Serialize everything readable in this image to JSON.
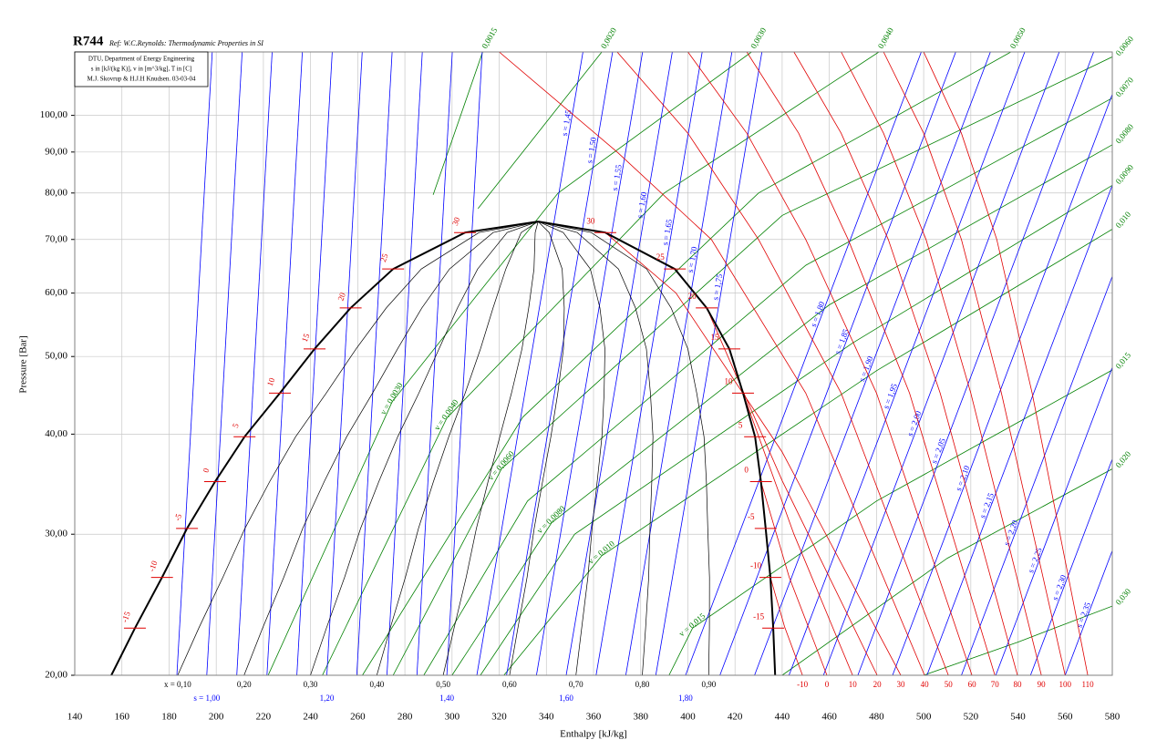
{
  "chart_data": {
    "type": "line",
    "title": "R744",
    "subtitle": "Ref: W.C.Reynolds: Thermodynamic Properties in SI",
    "info": [
      "DTU, Department of Energy Engineering",
      "s in [kJ/(kg K)], v in [m^3/kg], T in [C]",
      "M.J. Skovrup & H.J.H Knudsen. 03-03-04"
    ],
    "xlabel": "Enthalpy [kJ/kg]",
    "ylabel": "Pressure [Bar]",
    "xlim": [
      140,
      580
    ],
    "ylim": [
      20,
      120
    ],
    "ylog": true,
    "grid": true,
    "xticks": [
      140,
      160,
      180,
      200,
      220,
      240,
      260,
      280,
      300,
      320,
      340,
      360,
      380,
      400,
      420,
      440,
      460,
      480,
      500,
      520,
      540,
      560,
      580
    ],
    "yticks": [
      {
        "value": 20,
        "label": "20,00"
      },
      {
        "value": 30,
        "label": "30,00"
      },
      {
        "value": 40,
        "label": "40,00"
      },
      {
        "value": 50,
        "label": "50,00"
      },
      {
        "value": 60,
        "label": "60,00"
      },
      {
        "value": 70,
        "label": "70,00"
      },
      {
        "value": 80,
        "label": "80,00"
      },
      {
        "value": 90,
        "label": "90,00"
      },
      {
        "value": 100,
        "label": "100,00"
      }
    ],
    "dome": {
      "color": "#000000",
      "pressures": [
        20,
        22.9,
        26.5,
        30.5,
        34.9,
        39.7,
        45.0,
        51.1,
        57.5,
        64.3,
        71.4,
        73.7
      ],
      "h_liquid": [
        155.5,
        165.5,
        177,
        187.6,
        199.5,
        212,
        227,
        241.7,
        257,
        275,
        305.5,
        336.5
      ],
      "h_vapor": [
        437,
        436.2,
        435,
        433,
        431,
        428.5,
        423.4,
        417.6,
        408,
        394.5,
        365,
        336.5
      ],
      "temperatures": [
        null,
        "-15",
        "-10",
        "-5",
        "0",
        "5",
        "10",
        "15",
        "20",
        "25",
        "30",
        null
      ]
    },
    "quality": {
      "color": "#000000",
      "values": [
        0.1,
        0.2,
        0.3,
        0.4,
        0.5,
        0.6,
        0.7,
        0.8,
        0.9
      ],
      "labels": [
        "x = 0,10",
        "0,20",
        "0,30",
        "0,40",
        "0,50",
        "0,60",
        "0,70",
        "0,80",
        "0,90"
      ]
    },
    "isotherms": {
      "color": "#e00000",
      "series": [
        {
          "name": "-10",
          "x": [
            435,
            441,
            448.6
          ],
          "values": [
            26.5,
            23,
            20
          ]
        },
        {
          "name": "0",
          "x": [
            431,
            443,
            459
          ],
          "values": [
            34.9,
            26.5,
            20
          ]
        },
        {
          "name": "10",
          "x": [
            423.4,
            445,
            469.9
          ],
          "values": [
            45,
            30,
            20
          ]
        },
        {
          "name": "20",
          "x": [
            408,
            440,
            480.3
          ],
          "values": [
            57.5,
            35,
            20
          ]
        },
        {
          "name": "30",
          "x": [
            365,
            395,
            440,
            490.3
          ],
          "values": [
            71.4,
            60,
            38,
            20
          ]
        },
        {
          "name": "40",
          "x": [
            320,
            370,
            410,
            450,
            500.4
          ],
          "values": [
            120,
            90,
            70,
            45,
            20
          ]
        },
        {
          "name": "50",
          "x": [
            370,
            400,
            430,
            465,
            510.5
          ],
          "values": [
            120,
            95,
            70,
            45,
            20
          ]
        },
        {
          "name": "60",
          "x": [
            400,
            425,
            450,
            480,
            520.5
          ],
          "values": [
            120,
            95,
            70,
            45,
            20
          ]
        },
        {
          "name": "70",
          "x": [
            425,
            447,
            468,
            494,
            530.2
          ],
          "values": [
            120,
            95,
            70,
            45,
            20
          ]
        },
        {
          "name": "80",
          "x": [
            445,
            465,
            485,
            507,
            539.8
          ],
          "values": [
            120,
            95,
            70,
            45,
            20
          ]
        },
        {
          "name": "90",
          "x": [
            465,
            483,
            501,
            520,
            549.9
          ],
          "values": [
            120,
            95,
            70,
            45,
            20
          ]
        },
        {
          "name": "100",
          "x": [
            483,
            500,
            516,
            533,
            560
          ],
          "values": [
            120,
            95,
            70,
            45,
            20
          ]
        },
        {
          "name": "110",
          "x": [
            500,
            516,
            531,
            546,
            569.6
          ],
          "values": [
            120,
            95,
            70,
            45,
            20
          ]
        }
      ]
    },
    "isentropes": {
      "color": "#0000ff",
      "series": [
        {
          "x": [
            183.3,
            198.3
          ],
          "values": [
            20,
            120
          ]
        },
        {
          "x": [
            196,
            211
          ],
          "values": [
            20,
            120
          ]
        },
        {
          "x": [
            208.7,
            223.7
          ],
          "values": [
            20,
            120
          ]
        },
        {
          "x": [
            221.5,
            236.5
          ],
          "values": [
            20,
            120
          ]
        },
        {
          "x": [
            234.2,
            249.2
          ],
          "values": [
            20,
            120
          ]
        },
        {
          "x": [
            246.9,
            261.9
          ],
          "values": [
            20,
            120
          ]
        },
        {
          "x": [
            259.6,
            274.6
          ],
          "values": [
            20,
            120
          ]
        },
        {
          "x": [
            272.4,
            287.4
          ],
          "values": [
            20,
            120
          ]
        },
        {
          "x": [
            285.1,
            300.1
          ],
          "values": [
            20,
            120
          ]
        },
        {
          "x": [
            297.8,
            312.8
          ],
          "values": [
            20,
            120
          ]
        },
        {
          "name": "s = 1,45",
          "x": [
            310.5,
            355.5
          ],
          "values": [
            20,
            120
          ]
        },
        {
          "name": "s = 1,50",
          "x": [
            323.1,
            368.1
          ],
          "values": [
            20,
            120
          ]
        },
        {
          "name": "s = 1,55",
          "x": [
            335.8,
            380.8
          ],
          "values": [
            20,
            120
          ]
        },
        {
          "name": "s = 1,60",
          "x": [
            348.4,
            393.4
          ],
          "values": [
            20,
            120
          ]
        },
        {
          "name": "s = 1,65",
          "x": [
            361.1,
            406.1
          ],
          "values": [
            20,
            120
          ]
        },
        {
          "name": "s = 1,70",
          "x": [
            373.7,
            418.7
          ],
          "values": [
            20,
            120
          ]
        },
        {
          "name": "s = 1,75",
          "x": [
            386.4,
            431.4
          ],
          "values": [
            20,
            120
          ]
        },
        {
          "name": "s = 1,80",
          "x": [
            399,
            499
          ],
          "values": [
            20,
            120
          ]
        },
        {
          "name": "s = 1,85",
          "x": [
            413.6,
            513.6
          ],
          "values": [
            20,
            120
          ]
        },
        {
          "name": "s = 1,90",
          "x": [
            428.3,
            528.3
          ],
          "values": [
            20,
            120
          ]
        },
        {
          "name": "s = 1,95",
          "x": [
            442.9,
            542.9
          ],
          "values": [
            20,
            120
          ]
        },
        {
          "name": "s = 2,00",
          "x": [
            457.5,
            557.5
          ],
          "values": [
            20,
            120
          ]
        },
        {
          "name": "s = 2,05",
          "x": [
            472.1,
            572.1
          ],
          "values": [
            20,
            120
          ]
        },
        {
          "name": "s = 2,10",
          "x": [
            486.8,
            586.8
          ],
          "values": [
            20,
            120
          ]
        },
        {
          "name": "s = 2,15",
          "x": [
            501.4,
            601.4
          ],
          "values": [
            20,
            120
          ]
        },
        {
          "name": "s = 2,20",
          "x": [
            516,
            616
          ],
          "values": [
            20,
            120
          ]
        },
        {
          "name": "s = 2,25",
          "x": [
            530.6,
            630.6
          ],
          "values": [
            20,
            120
          ]
        },
        {
          "name": "s = 2,30",
          "x": [
            545.3,
            645.3
          ],
          "values": [
            20,
            120
          ]
        },
        {
          "name": "s = 2,35",
          "x": [
            560,
            660
          ],
          "values": [
            20,
            120
          ]
        }
      ]
    },
    "isochores": {
      "color": "#008000",
      "series": [
        {
          "name": "0,0015",
          "x": [
            292,
            313
          ],
          "values": [
            79.6,
            120
          ]
        },
        {
          "name": "0,0020",
          "x": [
            311,
            363.5
          ],
          "values": [
            76.5,
            120
          ]
        },
        {
          "name": "0,0030",
          "label": "v = 0,0030",
          "x": [
            222,
            274.6,
            345,
            427
          ],
          "values": [
            20,
            43.9,
            80,
            120
          ]
        },
        {
          "name": "0,0040",
          "label": "v = 0,0040",
          "x": [
            245,
            297.8,
            390,
            481
          ],
          "values": [
            20,
            41.9,
            80,
            120
          ]
        },
        {
          "name": "0,0050",
          "x": [
            262,
            330,
            430,
            537
          ],
          "values": [
            20,
            42,
            80,
            120
          ]
        },
        {
          "name": "0,0060",
          "label": "v = 0,0060",
          "x": [
            275,
            321,
            440,
            580
          ],
          "values": [
            20,
            36.2,
            75,
            118.3
          ]
        },
        {
          "name": "0,0070",
          "x": [
            288,
            332,
            450,
            580
          ],
          "values": [
            20,
            33,
            65,
            105.1
          ]
        },
        {
          "name": "0,0080",
          "label": "v = 0,0080",
          "x": [
            300,
            342.2,
            460,
            580
          ],
          "values": [
            20,
            31,
            58,
            91.9
          ]
        },
        {
          "name": "0,0090",
          "x": [
            312,
            352,
            470,
            580
          ],
          "values": [
            20,
            30,
            52,
            81.8
          ]
        },
        {
          "name": "0,010",
          "label": "v = 0,010",
          "x": [
            322,
            363.5,
            480,
            580
          ],
          "values": [
            20,
            28.2,
            48,
            72.1
          ]
        },
        {
          "name": "0,015",
          "label": "v = 0,015",
          "x": [
            392,
            402,
            480,
            580
          ],
          "values": [
            20,
            22.9,
            33,
            48.1
          ]
        },
        {
          "name": "0,020",
          "x": [
            440,
            510,
            580
          ],
          "values": [
            20,
            28,
            36.2
          ]
        },
        {
          "name": "0,030",
          "x": [
            500,
            540,
            580
          ],
          "values": [
            20,
            22,
            24.4
          ]
        }
      ]
    },
    "s_labels": {
      "x": [
        196,
        246.9,
        297.8,
        348.4,
        399
      ],
      "labels": [
        "s = 1,00",
        "1,20",
        "1,40",
        "1,60",
        "1,80"
      ]
    }
  }
}
